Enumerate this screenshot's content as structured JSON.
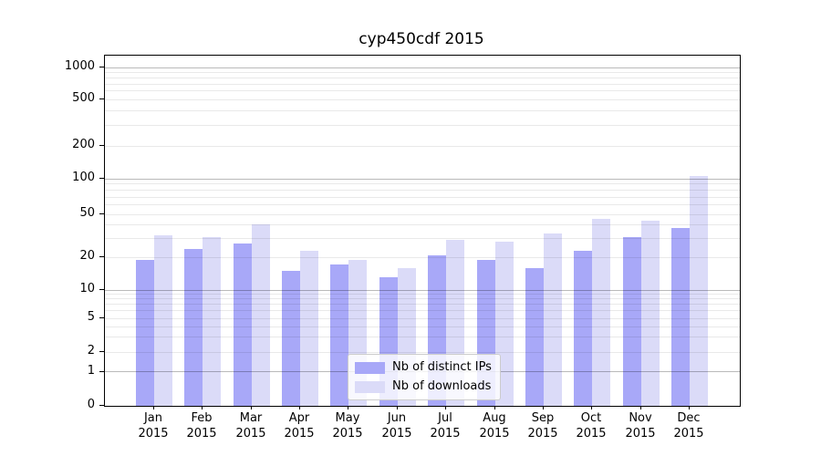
{
  "title": "cyp450cdf 2015",
  "chart_data": {
    "type": "bar",
    "title": "cyp450cdf 2015",
    "categories": [
      "Jan 2015",
      "Feb 2015",
      "Mar 2015",
      "Apr 2015",
      "May 2015",
      "Jun 2015",
      "Jul 2015",
      "Aug 2015",
      "Sep 2015",
      "Oct 2015",
      "Nov 2015",
      "Dec 2015"
    ],
    "series": [
      {
        "name": "Nb of distinct IPs",
        "color": "#a8a8f8",
        "values": [
          19,
          24,
          27,
          15,
          17,
          13,
          21,
          19,
          16,
          23,
          31,
          37
        ]
      },
      {
        "name": "Nb of downloads",
        "color": "#dbdbf8",
        "values": [
          32,
          31,
          40,
          23,
          19,
          16,
          29,
          28,
          33,
          45,
          44,
          107
        ]
      }
    ],
    "xlabel": "",
    "ylabel": "",
    "yscale": "symlog",
    "yticks": [
      0,
      1,
      2,
      5,
      10,
      20,
      50,
      100,
      200,
      500,
      1000
    ],
    "ytick_labels": [
      "0",
      "1",
      "2",
      "5",
      "10",
      "20",
      "50",
      "100",
      "200",
      "500",
      "1000"
    ],
    "ylim": [
      0,
      1200
    ],
    "grid": true,
    "grid_minor_color": "#ebebeb",
    "grid_major_color": "#bcbcbc",
    "spine_color": "#000000",
    "legend_position": "lower center"
  },
  "legend": {
    "items": [
      {
        "label": "Nb of distinct IPs",
        "color": "#a8a8f8"
      },
      {
        "label": "Nb of downloads",
        "color": "#dbdbf8"
      }
    ]
  }
}
